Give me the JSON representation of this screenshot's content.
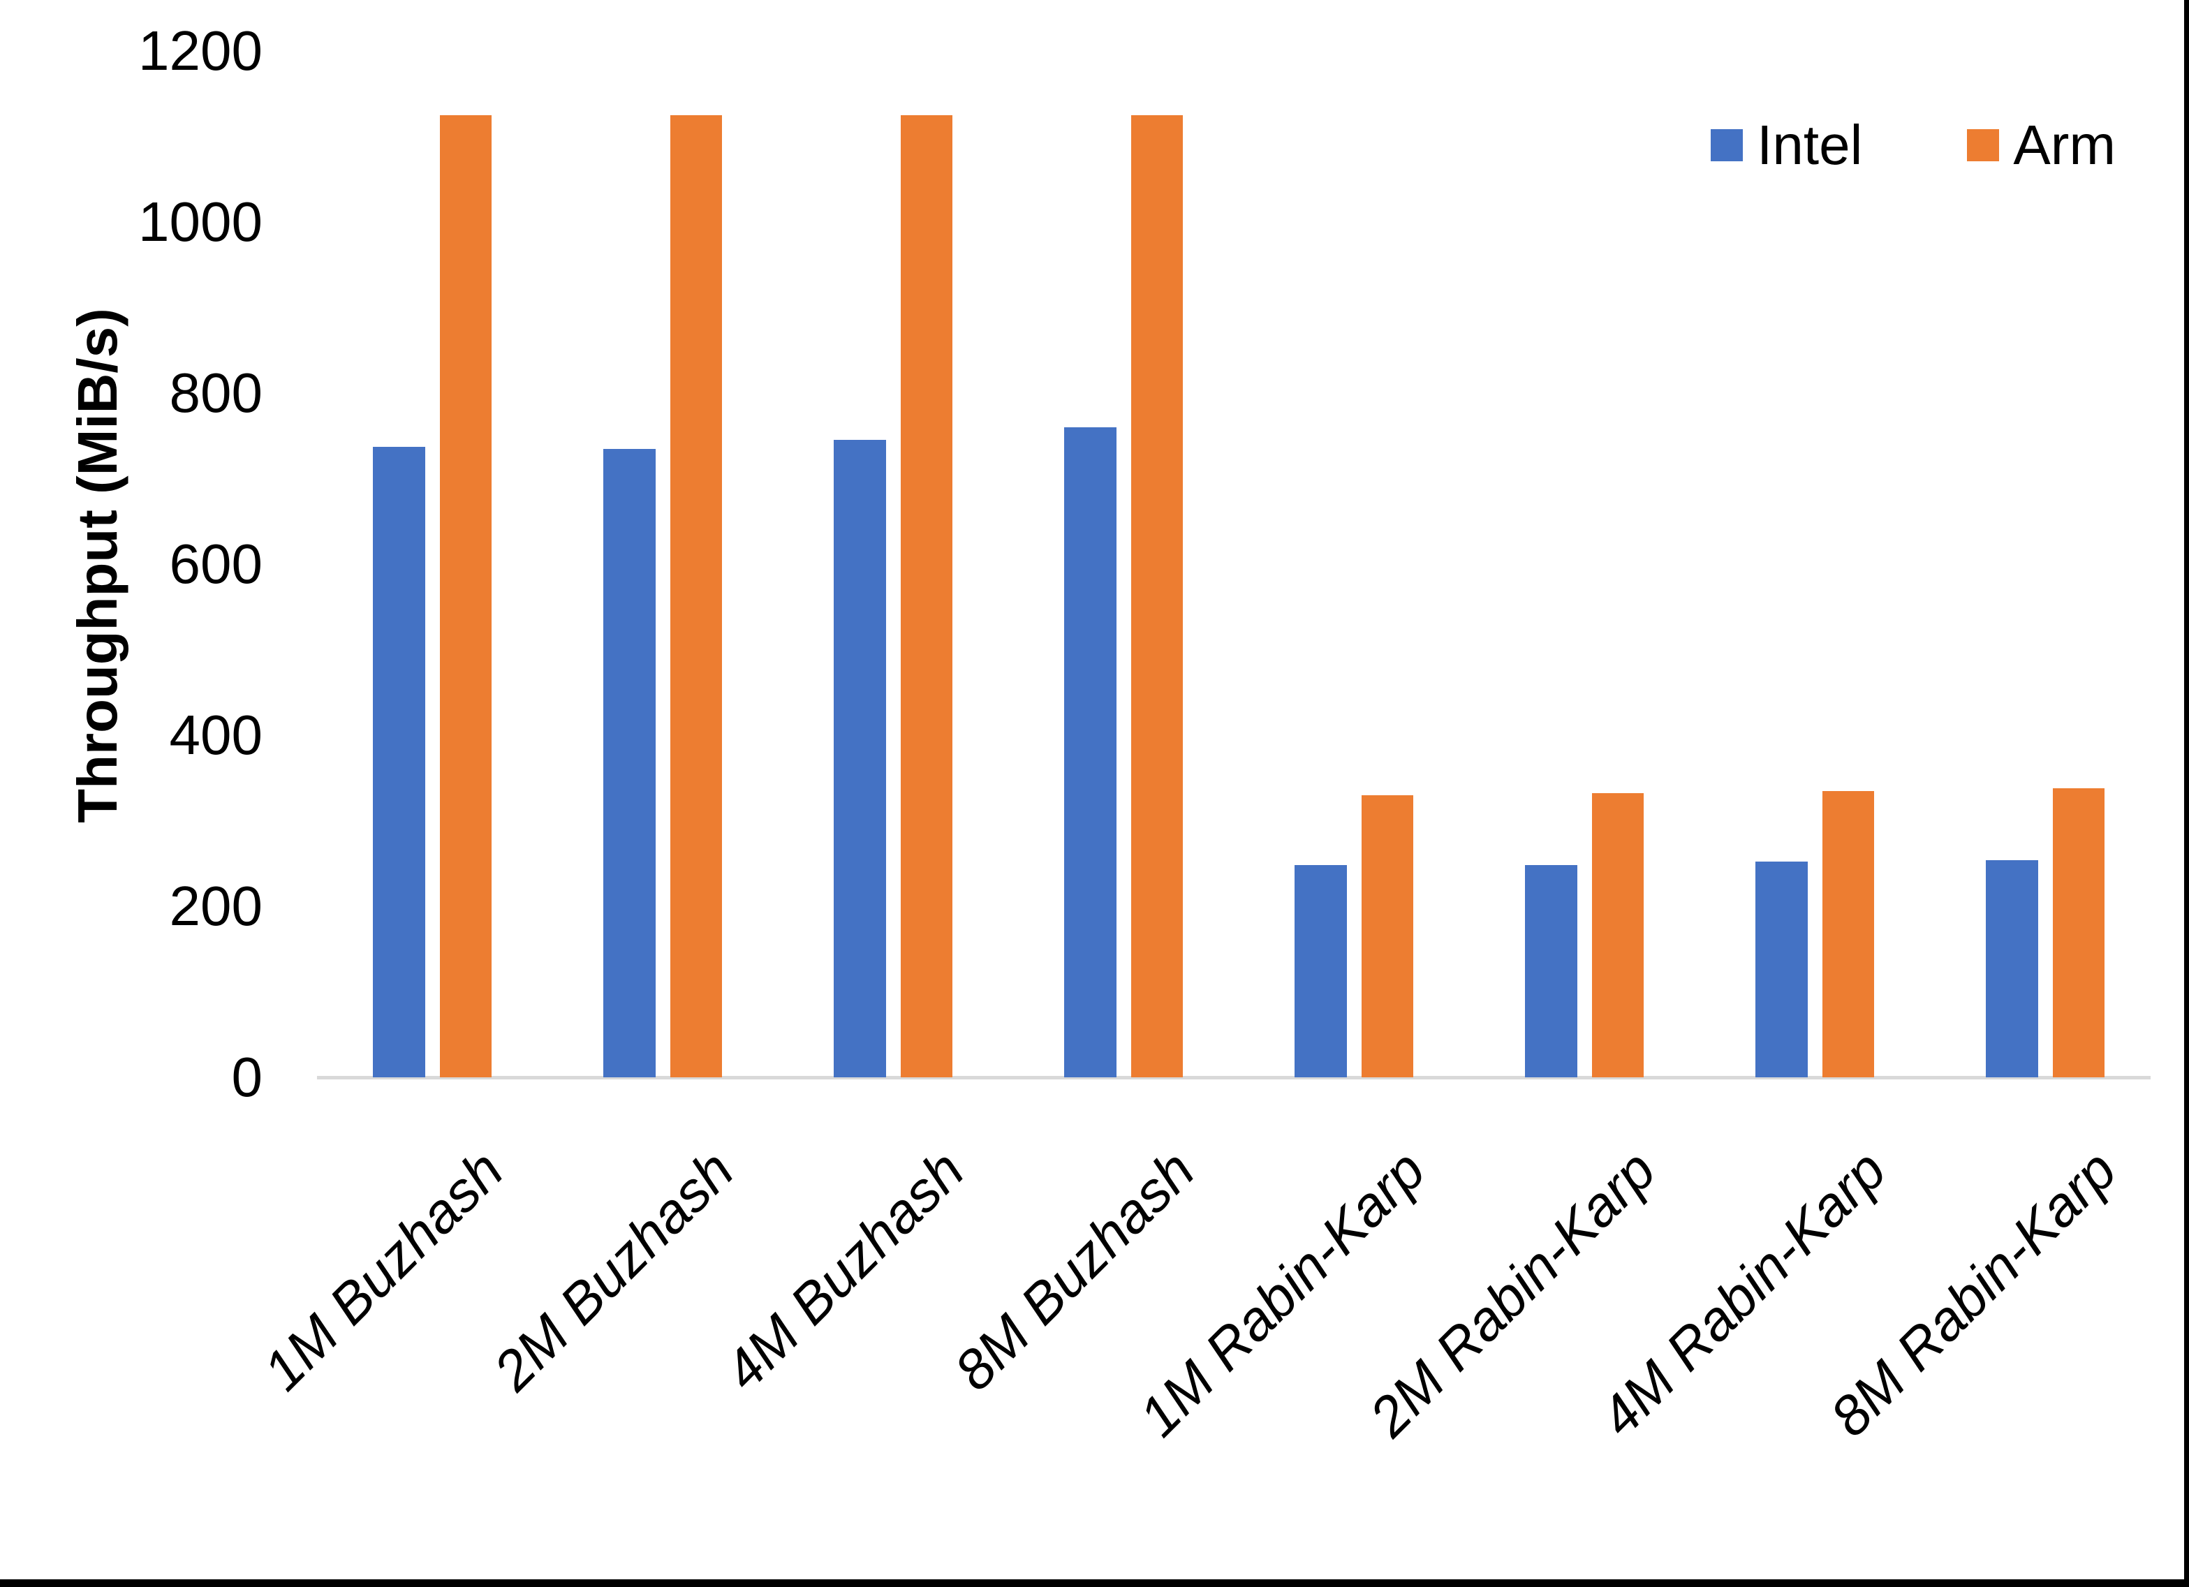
{
  "page": {
    "background": "#ffffff",
    "bottom_edge_color": "#000000",
    "right_edge_color": "#000000"
  },
  "chart_data": {
    "type": "bar",
    "title": "",
    "xlabel": "",
    "ylabel": "Throughput (MiB/s)",
    "ylim": [
      0,
      1200
    ],
    "yticks": [
      0,
      200,
      400,
      600,
      800,
      1000,
      1200
    ],
    "grid": false,
    "legend_position": "top-right",
    "axis_line_color": "#d9d9d9",
    "categories": [
      "1M Buzhash",
      "2M Buzhash",
      "4M Buzhash",
      "8M Buzhash",
      "1M Rabin-Karp",
      "2M Rabin-Karp",
      "4M Rabin-Karp",
      "8M Rabin-Karp"
    ],
    "series": [
      {
        "name": "Intel",
        "color": "#4472c4",
        "values": [
          737,
          735,
          745,
          760,
          248,
          248,
          252,
          254
        ]
      },
      {
        "name": "Arm",
        "color": "#ed7d31",
        "values": [
          1125,
          1125,
          1125,
          1125,
          330,
          332,
          335,
          338
        ]
      }
    ]
  }
}
